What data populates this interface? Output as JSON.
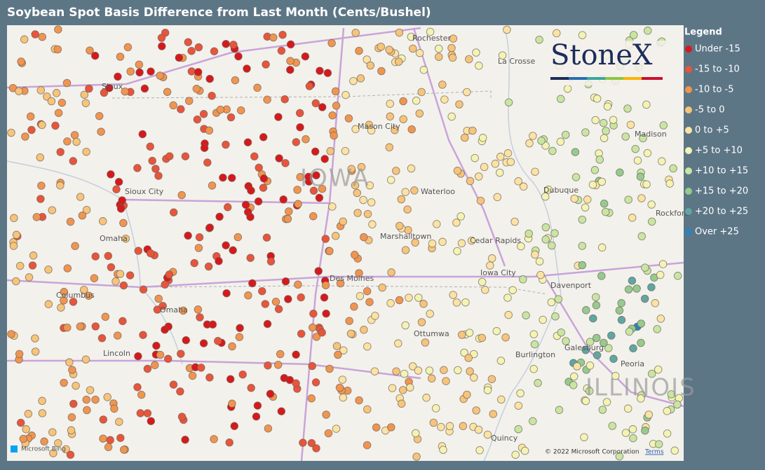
{
  "title": "Soybean Spot Basis Difference from Last Month (Cents/Bushel)",
  "legend": {
    "title": "Legend",
    "items": [
      {
        "label": "Under -15",
        "color": "#d7191c"
      },
      {
        "label": "-15 to -10",
        "color": "#e8553b"
      },
      {
        "label": "-10 to -5",
        "color": "#f0954f"
      },
      {
        "label": "-5 to 0",
        "color": "#f6c47a"
      },
      {
        "label": "0 to +5",
        "color": "#fbe3a3"
      },
      {
        "label": "+5 to +10",
        "color": "#f3f4b3"
      },
      {
        "label": "+10 to +15",
        "color": "#c8e6a2"
      },
      {
        "label": "+15 to +20",
        "color": "#95cb8d"
      },
      {
        "label": "+20 to +25",
        "color": "#5fa7a1"
      },
      {
        "label": "Over +25",
        "color": "#2b83ba"
      }
    ]
  },
  "logo": "StoneX",
  "map_labels": [
    "Rochester",
    "La Crosse",
    "Sioux",
    "Mason City",
    "Madison",
    "IOWA",
    "Sioux City",
    "Waterloo",
    "Dubuque",
    "Rockford",
    "Marshalltown",
    "Cedar Rapids",
    "Omaha",
    "Iowa City",
    "Des Moines",
    "Davenport",
    "Columbus",
    "Omaha",
    "Ottumwa",
    "Galesburg",
    "Burlington",
    "Lincoln",
    "Peoria",
    "ILLINOIS",
    "Quincy"
  ],
  "attribution": {
    "bing": "Microsoft Bing",
    "copyright": "© 2022 Microsoft Corporation",
    "terms": "Terms"
  }
}
